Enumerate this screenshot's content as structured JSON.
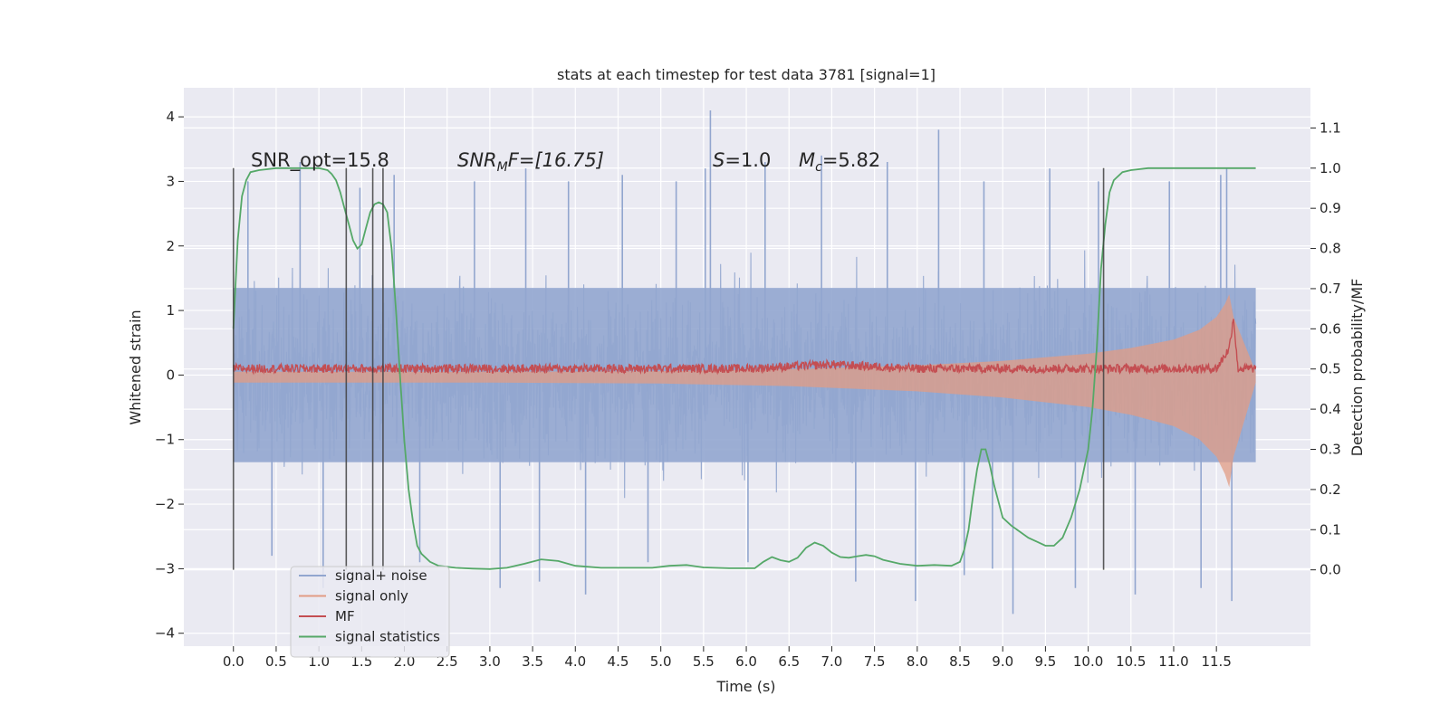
{
  "chart_data": {
    "type": "line",
    "title": "stats at each timestep for test data 3781 [signal=1]",
    "xlabel": "Time (s)",
    "ylabel_left": "Whitened strain",
    "ylabel_right": "Detection probability/MF",
    "xlim": [
      -0.58,
      12.6
    ],
    "ylim_left": [
      -4.2,
      4.45
    ],
    "ylim_right": [
      -0.19,
      1.2
    ],
    "grid": true,
    "x_ticks": [
      "0.0",
      "0.5",
      "1.0",
      "1.5",
      "2.0",
      "2.5",
      "3.0",
      "3.5",
      "4.0",
      "4.5",
      "5.0",
      "5.5",
      "6.0",
      "6.5",
      "7.0",
      "7.5",
      "8.0",
      "8.5",
      "9.0",
      "9.5",
      "10.0",
      "10.5",
      "11.0",
      "11.5"
    ],
    "y_ticks_left": [
      "4",
      "3",
      "2",
      "1",
      "0",
      "−1",
      "−2",
      "−3",
      "−4"
    ],
    "y_ticks_right": [
      "1.1",
      "1.0",
      "0.9",
      "0.8",
      "0.7",
      "0.6",
      "0.5",
      "0.4",
      "0.3",
      "0.2",
      "0.1",
      "0.0"
    ],
    "annotations": {
      "snr_opt": "SNR_opt=15.8",
      "snr_mf_italic": "SNR",
      "snr_mf_sub": "M",
      "snr_mf_rest": "F=[16.75]",
      "s_italic": "S",
      "s_rest": "=1.0",
      "mc_italic": "M",
      "mc_sub": "c",
      "mc_rest": "=5.82"
    },
    "vertical_lines_x": [
      0.0,
      1.32,
      1.63,
      1.75,
      10.18
    ],
    "series": [
      {
        "name": "signal+ noise",
        "color": "#92a6cf",
        "axis": "left",
        "description_x_range": [
          0.0,
          11.96
        ],
        "typical_range": [
          -1.6,
          1.6
        ],
        "x": [
          0.17,
          0.45,
          0.78,
          1.05,
          1.48,
          1.88,
          2.18,
          2.82,
          3.12,
          3.42,
          3.58,
          3.92,
          4.12,
          4.55,
          4.85,
          5.18,
          5.52,
          5.58,
          6.02,
          6.22,
          6.88,
          7.28,
          7.65,
          7.98,
          8.25,
          8.55,
          8.78,
          8.88,
          9.12,
          9.55,
          9.85,
          10.12,
          10.55,
          10.95,
          11.32,
          11.55,
          11.62,
          11.68
        ],
        "values": [
          3.0,
          -2.8,
          3.3,
          -3.3,
          2.9,
          3.1,
          -2.9,
          3.0,
          -3.3,
          3.2,
          -3.2,
          3.0,
          -3.4,
          3.1,
          -2.9,
          3.0,
          3.2,
          4.1,
          -2.9,
          3.3,
          3.4,
          -3.2,
          3.3,
          -3.5,
          3.8,
          -3.1,
          3.0,
          -3.0,
          -3.7,
          3.2,
          -3.3,
          3.0,
          -3.4,
          3.0,
          -3.3,
          3.1,
          3.2,
          -3.5
        ]
      },
      {
        "name": "signal only",
        "color": "#e29c84",
        "axis": "left",
        "x": [
          0.0,
          3.0,
          5.0,
          6.5,
          8.0,
          9.0,
          10.0,
          10.5,
          11.0,
          11.3,
          11.5,
          11.6,
          11.65,
          11.7,
          11.96
        ],
        "values": [
          0.05,
          0.05,
          0.06,
          0.09,
          0.15,
          0.22,
          0.33,
          0.42,
          0.55,
          0.7,
          0.9,
          1.1,
          1.25,
          0.9,
          0.05
        ]
      },
      {
        "name": "MF",
        "color": "#c44e52",
        "axis": "right",
        "x": [
          0.0,
          2.0,
          4.0,
          6.0,
          7.0,
          8.0,
          10.0,
          11.5,
          11.65,
          11.7,
          11.75,
          11.96
        ],
        "values": [
          0.5,
          0.5,
          0.5,
          0.5,
          0.51,
          0.5,
          0.5,
          0.5,
          0.55,
          0.63,
          0.5,
          0.5
        ]
      },
      {
        "name": "signal statistics",
        "color": "#55a868",
        "axis": "right",
        "x": [
          0.0,
          0.05,
          0.1,
          0.15,
          0.2,
          0.3,
          0.5,
          0.8,
          1.0,
          1.1,
          1.15,
          1.2,
          1.25,
          1.3,
          1.35,
          1.4,
          1.45,
          1.5,
          1.55,
          1.6,
          1.65,
          1.7,
          1.75,
          1.8,
          1.85,
          1.9,
          1.95,
          2.0,
          2.05,
          2.1,
          2.15,
          2.2,
          2.3,
          2.4,
          2.6,
          2.8,
          3.0,
          3.2,
          3.4,
          3.6,
          3.8,
          4.0,
          4.3,
          4.6,
          4.9,
          5.1,
          5.3,
          5.5,
          5.8,
          6.1,
          6.2,
          6.3,
          6.4,
          6.5,
          6.6,
          6.7,
          6.8,
          6.9,
          7.0,
          7.1,
          7.2,
          7.3,
          7.4,
          7.5,
          7.6,
          7.8,
          8.0,
          8.2,
          8.4,
          8.5,
          8.55,
          8.6,
          8.65,
          8.7,
          8.75,
          8.8,
          8.85,
          8.9,
          8.95,
          9.0,
          9.1,
          9.2,
          9.3,
          9.4,
          9.5,
          9.6,
          9.7,
          9.8,
          9.9,
          10.0,
          10.05,
          10.1,
          10.15,
          10.2,
          10.25,
          10.3,
          10.4,
          10.5,
          10.7,
          11.0,
          11.5,
          11.96
        ],
        "values": [
          0.6,
          0.82,
          0.93,
          0.97,
          0.99,
          0.995,
          1.0,
          1.0,
          1.0,
          0.995,
          0.985,
          0.97,
          0.94,
          0.9,
          0.86,
          0.82,
          0.8,
          0.81,
          0.85,
          0.89,
          0.91,
          0.915,
          0.91,
          0.89,
          0.8,
          0.65,
          0.48,
          0.32,
          0.2,
          0.12,
          0.06,
          0.04,
          0.02,
          0.01,
          0.005,
          0.003,
          0.002,
          0.005,
          0.015,
          0.026,
          0.022,
          0.01,
          0.005,
          0.005,
          0.005,
          0.01,
          0.012,
          0.006,
          0.004,
          0.004,
          0.02,
          0.032,
          0.024,
          0.02,
          0.03,
          0.055,
          0.068,
          0.06,
          0.043,
          0.032,
          0.03,
          0.034,
          0.037,
          0.034,
          0.025,
          0.015,
          0.01,
          0.012,
          0.01,
          0.02,
          0.05,
          0.1,
          0.18,
          0.25,
          0.3,
          0.3,
          0.26,
          0.21,
          0.17,
          0.13,
          0.11,
          0.095,
          0.08,
          0.07,
          0.06,
          0.06,
          0.08,
          0.13,
          0.2,
          0.3,
          0.4,
          0.55,
          0.75,
          0.86,
          0.94,
          0.97,
          0.99,
          0.995,
          1.0,
          1.0,
          1.0,
          1.0
        ]
      }
    ],
    "legend": {
      "placement": "bottom-left",
      "entries": [
        "signal+ noise",
        "signal only",
        "MF",
        "signal statistics"
      ]
    }
  }
}
